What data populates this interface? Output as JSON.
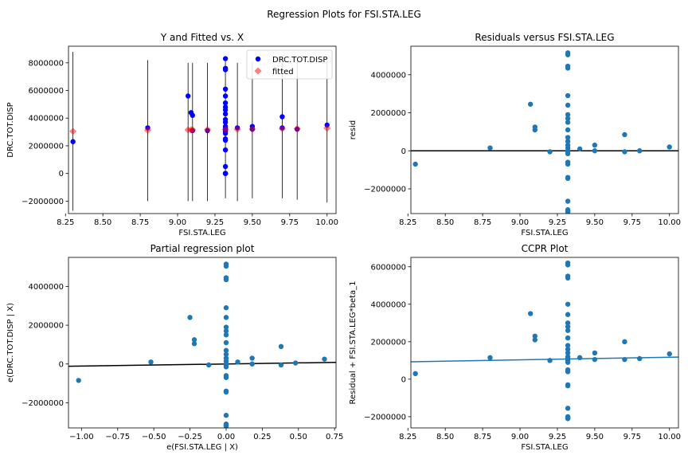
{
  "figure": {
    "suptitle": "Regression Plots for FSI.STA.LEG"
  },
  "colors": {
    "blue": "#0000ff",
    "fitted": "#ff0000",
    "dots": "#1f77b4",
    "line": "#000000",
    "ccpr_line": "#1f77b4"
  },
  "chart_data": [
    {
      "id": "y-fitted",
      "type": "scatter",
      "title": "Y and Fitted vs. X",
      "xlabel": "FSI.STA.LEG",
      "ylabel": "DRC.TOT.DISP",
      "xlim": [
        8.27,
        10.06
      ],
      "ylim": [
        -2900000,
        9200000
      ],
      "xticks": [
        8.25,
        8.5,
        8.75,
        9.0,
        9.25,
        9.5,
        9.75,
        10.0
      ],
      "xtick_labels": [
        "8.25",
        "8.50",
        "8.75",
        "9.00",
        "9.25",
        "9.50",
        "9.75",
        "10.00"
      ],
      "yticks": [
        -2000000,
        0,
        2000000,
        4000000,
        6000000,
        8000000
      ],
      "ytick_labels": [
        "−2000000",
        "0",
        "2000000",
        "4000000",
        "6000000",
        "8000000"
      ],
      "legend": {
        "placement": "top-right",
        "entries": [
          "DRC.TOT.DISP",
          "fitted"
        ]
      },
      "series": [
        {
          "name": "DRC.TOT.DISP",
          "x": [
            8.3,
            8.8,
            9.07,
            9.09,
            9.1,
            9.1,
            9.2,
            9.32,
            9.32,
            9.32,
            9.32,
            9.32,
            9.32,
            9.32,
            9.32,
            9.32,
            9.32,
            9.32,
            9.32,
            9.32,
            9.32,
            9.32,
            9.32,
            9.32,
            9.32,
            9.32,
            9.32,
            9.32,
            9.32,
            9.32,
            9.32,
            9.32,
            9.4,
            9.5,
            9.5,
            9.7,
            9.7,
            9.8,
            10.0
          ],
          "y": [
            2300000,
            3300000,
            5600000,
            4400000,
            4200000,
            3100000,
            3100000,
            8300000,
            7600000,
            7500000,
            6100000,
            5600000,
            5100000,
            4800000,
            4600000,
            4300000,
            3900000,
            3700000,
            3400000,
            3300000,
            3200000,
            3100000,
            3000000,
            2900000,
            2500000,
            2400000,
            1700000,
            500000,
            0,
            0,
            0,
            0,
            3300000,
            3400000,
            3200000,
            4100000,
            3300000,
            3200000,
            3500000
          ]
        },
        {
          "name": "fitted",
          "x": [
            8.3,
            8.8,
            9.07,
            9.09,
            9.1,
            9.2,
            9.32,
            9.4,
            9.5,
            9.7,
            9.8,
            10.0
          ],
          "y": [
            3050000,
            3130000,
            3150000,
            3150000,
            3160000,
            3170000,
            3180000,
            3190000,
            3200000,
            3230000,
            3240000,
            3270000
          ]
        }
      ],
      "error_bars": [
        {
          "x": 8.3,
          "low": -2700000,
          "high": 8800000
        },
        {
          "x": 8.8,
          "low": -2000000,
          "high": 8200000
        },
        {
          "x": 9.07,
          "low": -2000000,
          "high": 8000000
        },
        {
          "x": 9.1,
          "low": -2000000,
          "high": 8000000
        },
        {
          "x": 9.2,
          "low": -2000000,
          "high": 8000000
        },
        {
          "x": 9.32,
          "low": -1800000,
          "high": 8100000
        },
        {
          "x": 9.4,
          "low": -2000000,
          "high": 8000000
        },
        {
          "x": 9.5,
          "low": -1800000,
          "high": 8100000
        },
        {
          "x": 9.7,
          "low": -1800000,
          "high": 8000000
        },
        {
          "x": 9.8,
          "low": -1900000,
          "high": 8100000
        },
        {
          "x": 10.0,
          "low": -2100000,
          "high": 8200000
        }
      ]
    },
    {
      "id": "residuals",
      "type": "scatter",
      "title": "Residuals versus FSI.STA.LEG",
      "xlabel": "FSI.STA.LEG",
      "ylabel": "resid",
      "xlim": [
        8.27,
        10.06
      ],
      "ylim": [
        -3300000,
        5500000
      ],
      "xticks": [
        8.25,
        8.5,
        8.75,
        9.0,
        9.25,
        9.5,
        9.75,
        10.0
      ],
      "xtick_labels": [
        "8.25",
        "8.50",
        "8.75",
        "9.00",
        "9.25",
        "9.50",
        "9.75",
        "10.00"
      ],
      "yticks": [
        -2000000,
        0,
        2000000,
        4000000
      ],
      "ytick_labels": [
        "−2000000",
        "0",
        "2000000",
        "4000000"
      ],
      "hline": 0,
      "series": [
        {
          "name": "",
          "x": [
            8.3,
            8.8,
            9.07,
            9.1,
            9.1,
            9.2,
            9.32,
            9.32,
            9.32,
            9.32,
            9.32,
            9.32,
            9.32,
            9.32,
            9.32,
            9.32,
            9.32,
            9.32,
            9.32,
            9.32,
            9.32,
            9.32,
            9.32,
            9.32,
            9.32,
            9.32,
            9.32,
            9.32,
            9.32,
            9.32,
            9.32,
            9.32,
            9.4,
            9.5,
            9.5,
            9.7,
            9.7,
            9.8,
            10.0
          ],
          "y": [
            -700000,
            150000,
            2450000,
            1250000,
            1100000,
            -50000,
            5150000,
            5050000,
            4450000,
            4350000,
            2900000,
            2400000,
            1900000,
            1700000,
            1500000,
            1100000,
            700000,
            500000,
            300000,
            150000,
            0,
            -50000,
            -150000,
            -600000,
            -700000,
            -1400000,
            -1450000,
            -2650000,
            -3100000,
            -3150000,
            -3200000,
            -3200000,
            100000,
            300000,
            0,
            850000,
            -50000,
            0,
            200000
          ]
        }
      ]
    },
    {
      "id": "partial",
      "type": "scatter",
      "title": "Partial regression plot",
      "xlabel": "e(FSI.STA.LEG | X)",
      "ylabel": "e(DRC.TOT.DISP | X)",
      "xlim": [
        -1.09,
        0.76
      ],
      "ylim": [
        -3300000,
        5500000
      ],
      "xticks": [
        -1.0,
        -0.75,
        -0.5,
        -0.25,
        0.0,
        0.25,
        0.5,
        0.75
      ],
      "xtick_labels": [
        "−1.00",
        "−0.75",
        "−0.50",
        "−0.25",
        "0.00",
        "0.25",
        "0.50",
        "0.75"
      ],
      "yticks": [
        -2000000,
        0,
        2000000,
        4000000
      ],
      "ytick_labels": [
        "−2000000",
        "0",
        "2000000",
        "4000000"
      ],
      "fit_line": {
        "slope": 110000,
        "intercept": 0
      },
      "series": [
        {
          "name": "",
          "x": [
            -1.02,
            -0.52,
            -0.25,
            -0.22,
            -0.22,
            -0.12,
            0,
            0,
            0,
            0,
            0,
            0,
            0,
            0,
            0,
            0,
            0,
            0,
            0,
            0,
            0,
            0,
            0,
            0,
            0,
            0,
            0,
            0,
            0,
            0,
            0,
            0,
            0.08,
            0.18,
            0.18,
            0.38,
            0.38,
            0.48,
            0.68
          ],
          "y": [
            -850000,
            100000,
            2400000,
            1250000,
            1050000,
            -50000,
            5150000,
            5050000,
            4450000,
            4350000,
            2900000,
            2400000,
            1900000,
            1700000,
            1500000,
            1100000,
            700000,
            500000,
            300000,
            150000,
            0,
            -50000,
            -150000,
            -600000,
            -700000,
            -1400000,
            -1450000,
            -2650000,
            -3100000,
            -3150000,
            -3200000,
            -3200000,
            100000,
            300000,
            0,
            900000,
            -50000,
            50000,
            250000
          ]
        }
      ]
    },
    {
      "id": "ccpr",
      "type": "scatter",
      "title": "CCPR Plot",
      "xlabel": "FSI.STA.LEG",
      "ylabel": "Residual + FSI.STA.LEG*beta_1",
      "xlim": [
        8.27,
        10.06
      ],
      "ylim": [
        -2600000,
        6500000
      ],
      "xticks": [
        8.25,
        8.5,
        8.75,
        9.0,
        9.25,
        9.5,
        9.75,
        10.0
      ],
      "xtick_labels": [
        "8.25",
        "8.50",
        "8.75",
        "9.00",
        "9.25",
        "9.50",
        "9.75",
        "10.00"
      ],
      "yticks": [
        -2000000,
        0,
        2000000,
        4000000,
        6000000
      ],
      "ytick_labels": [
        "−2000000",
        "0",
        "2000000",
        "4000000",
        "6000000"
      ],
      "fit_line": {
        "x": [
          8.27,
          10.06
        ],
        "y": [
          930000,
          1180000
        ]
      },
      "series": [
        {
          "name": "",
          "x": [
            8.3,
            8.8,
            9.07,
            9.1,
            9.1,
            9.2,
            9.32,
            9.32,
            9.32,
            9.32,
            9.32,
            9.32,
            9.32,
            9.32,
            9.32,
            9.32,
            9.32,
            9.32,
            9.32,
            9.32,
            9.32,
            9.32,
            9.32,
            9.32,
            9.32,
            9.32,
            9.32,
            9.32,
            9.32,
            9.32,
            9.32,
            9.32,
            9.4,
            9.5,
            9.5,
            9.7,
            9.7,
            9.8,
            10.0
          ],
          "y": [
            300000,
            1150000,
            3500000,
            2300000,
            2100000,
            1000000,
            6200000,
            6100000,
            5500000,
            5400000,
            4000000,
            3450000,
            3000000,
            2800000,
            2600000,
            2200000,
            1800000,
            1600000,
            1400000,
            1200000,
            1100000,
            1000000,
            900000,
            500000,
            400000,
            -300000,
            -350000,
            -1550000,
            -2000000,
            -2050000,
            -2100000,
            -2100000,
            1150000,
            1400000,
            1050000,
            2000000,
            1050000,
            1100000,
            1350000
          ]
        }
      ]
    }
  ]
}
